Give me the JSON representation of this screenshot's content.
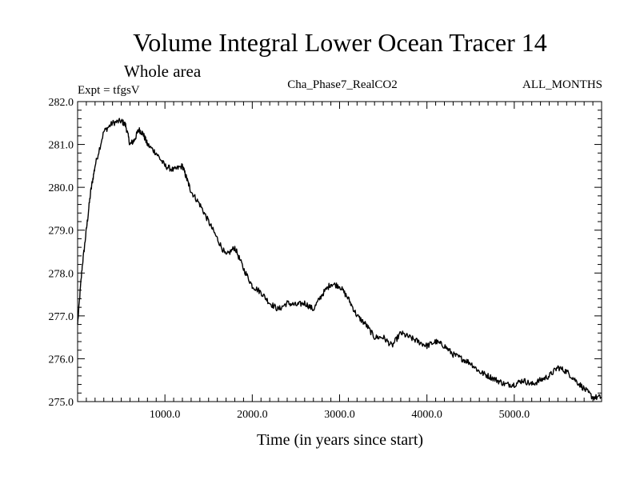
{
  "chart_data": {
    "type": "line",
    "title": "Volume Integral Lower Ocean Tracer 14",
    "subtitle": "Whole area",
    "header_left": "Expt = tfgsV",
    "header_center": "Cha_Phase7_RealCO2",
    "header_right": "ALL_MONTHS",
    "xlabel": "Time (in years since start)",
    "ylabel": "",
    "xlim": [
      0,
      6000
    ],
    "ylim": [
      275.0,
      282.0
    ],
    "x_ticks": [
      1000,
      2000,
      3000,
      4000,
      5000
    ],
    "x_tick_labels": [
      "1000.0",
      "2000.0",
      "3000.0",
      "4000.0",
      "5000.0"
    ],
    "y_ticks": [
      275,
      276,
      277,
      278,
      279,
      280,
      281,
      282
    ],
    "y_tick_labels": [
      "275.0",
      "276.0",
      "277.0",
      "278.0",
      "279.0",
      "280.0",
      "281.0",
      "282.0"
    ],
    "grid": false,
    "series": [
      {
        "name": "Volume Integral Lower Ocean Tracer 14",
        "color": "#000000",
        "x": [
          0,
          50,
          100,
          150,
          200,
          300,
          400,
          500,
          550,
          600,
          650,
          700,
          750,
          800,
          900,
          1000,
          1100,
          1200,
          1250,
          1300,
          1400,
          1500,
          1600,
          1700,
          1800,
          1900,
          2000,
          2100,
          2200,
          2300,
          2400,
          2500,
          2600,
          2700,
          2800,
          2900,
          3000,
          3100,
          3200,
          3300,
          3400,
          3500,
          3600,
          3700,
          3800,
          3900,
          4000,
          4100,
          4200,
          4300,
          4400,
          4500,
          4600,
          4700,
          4800,
          4900,
          5000,
          5100,
          5200,
          5300,
          5400,
          5500,
          5600,
          5700,
          5800,
          5900,
          6000
        ],
        "values": [
          276.8,
          278.1,
          279.0,
          279.9,
          280.5,
          281.3,
          281.5,
          281.55,
          281.45,
          281.0,
          281.1,
          281.35,
          281.25,
          281.0,
          280.8,
          280.5,
          280.4,
          280.5,
          280.2,
          279.9,
          279.6,
          279.2,
          278.8,
          278.4,
          278.6,
          278.1,
          277.7,
          277.55,
          277.3,
          277.15,
          277.3,
          277.25,
          277.3,
          277.15,
          277.5,
          277.75,
          277.7,
          277.4,
          277.0,
          276.8,
          276.5,
          276.5,
          276.3,
          276.6,
          276.5,
          276.4,
          276.3,
          276.4,
          276.3,
          276.1,
          276.0,
          275.9,
          275.7,
          275.6,
          275.5,
          275.4,
          275.4,
          275.5,
          275.4,
          275.5,
          275.6,
          275.8,
          275.7,
          275.5,
          275.3,
          275.1,
          275.1
        ]
      }
    ]
  }
}
